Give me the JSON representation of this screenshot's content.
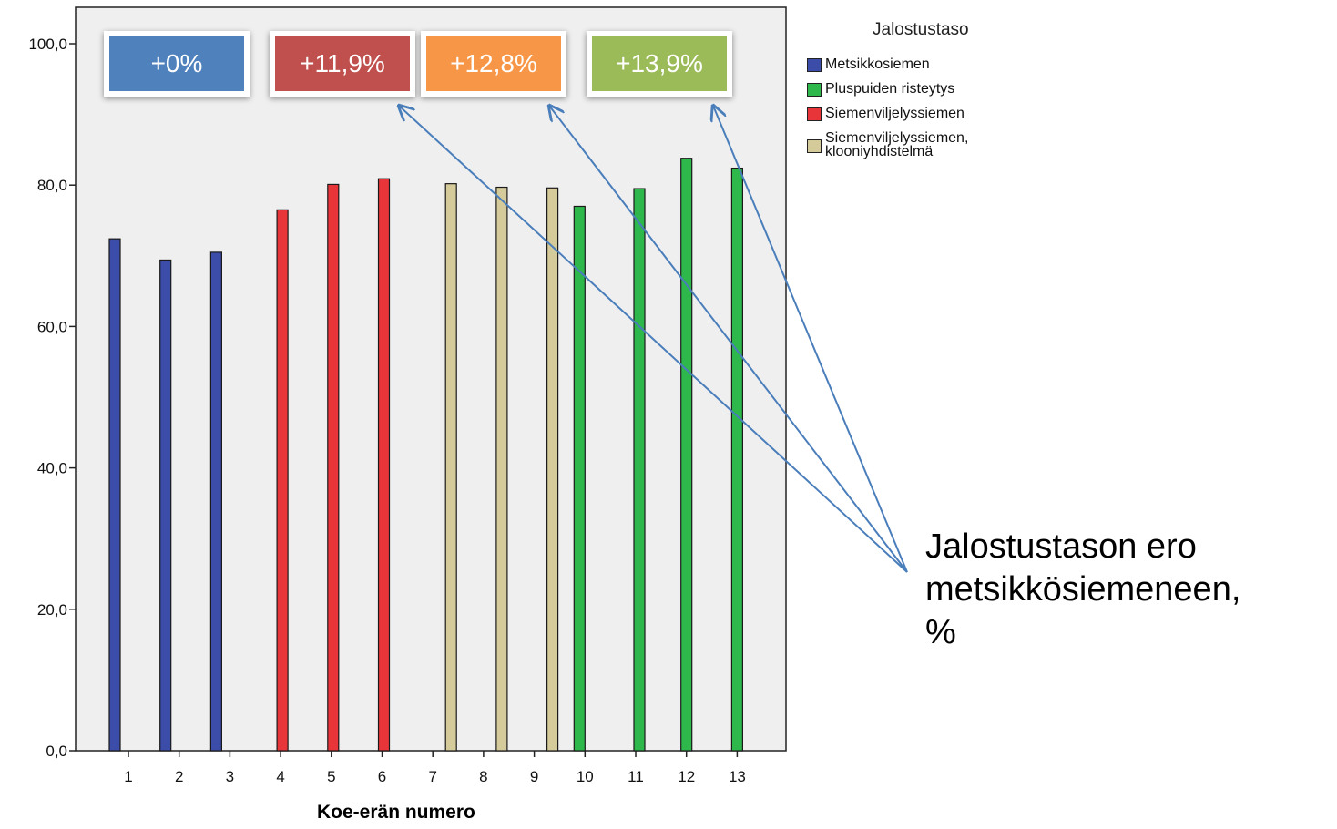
{
  "chart_data": {
    "type": "bar",
    "title": "",
    "xlabel": "Koe-erän numero",
    "ylabel": "",
    "ylim": [
      0,
      100
    ],
    "yticks": [
      "0,0",
      "20,0",
      "40,0",
      "60,0",
      "80,0",
      "100,0"
    ],
    "categories": [
      "1",
      "2",
      "3",
      "4",
      "5",
      "6",
      "7",
      "8",
      "9",
      "10",
      "11",
      "12",
      "13"
    ],
    "grid": false,
    "legend": {
      "title": "Jalostustaso",
      "placement": "right",
      "entries": [
        {
          "name": "Metsikkosiemen",
          "color": "#3B4DA8"
        },
        {
          "name": "Pluspuiden risteytys",
          "color": "#2EB84B"
        },
        {
          "name": "Siemenviljelyssiemen",
          "color": "#E8353A"
        },
        {
          "name": "Siemenviljelyssiemen, klooniyhdistelmä",
          "color": "#D5CA9A"
        }
      ]
    },
    "bars": [
      {
        "category": "1",
        "series": "Metsikkosiemen",
        "value": 72.4
      },
      {
        "category": "2",
        "series": "Metsikkosiemen",
        "value": 69.4
      },
      {
        "category": "3",
        "series": "Metsikkosiemen",
        "value": 70.5
      },
      {
        "category": "4",
        "series": "Siemenviljelyssiemen",
        "value": 76.5
      },
      {
        "category": "5",
        "series": "Siemenviljelyssiemen",
        "value": 80.1
      },
      {
        "category": "6",
        "series": "Siemenviljelyssiemen",
        "value": 80.9
      },
      {
        "category": "7",
        "series": "Siemenviljelyssiemen, klooniyhdistelmä",
        "value": 80.2
      },
      {
        "category": "8",
        "series": "Siemenviljelyssiemen, klooniyhdistelmä",
        "value": 79.7
      },
      {
        "category": "9",
        "series": "Siemenviljelyssiemen, klooniyhdistelmä",
        "value": 79.6
      },
      {
        "category": "10",
        "series": "Pluspuiden risteytys",
        "value": 77.0
      },
      {
        "category": "11",
        "series": "Pluspuiden risteytys",
        "value": 79.5
      },
      {
        "category": "12",
        "series": "Pluspuiden risteytys",
        "value": 83.8
      },
      {
        "category": "13",
        "series": "Pluspuiden risteytys",
        "value": 82.4
      }
    ]
  },
  "badges": [
    {
      "text": "+0%",
      "color": "#4F81BD"
    },
    {
      "text": "+11,9%",
      "color": "#C0504D"
    },
    {
      "text": "+12,8%",
      "color": "#F79646"
    },
    {
      "text": "+13,9%",
      "color": "#9BBB59"
    }
  ],
  "annotation": {
    "text": "Jalostustason ero\nmetsikkösiemeneen,\n%",
    "arrow_color": "#4A7EBB"
  },
  "colors": {
    "plot_background": "#EFEFEF",
    "axis": "#222222"
  }
}
